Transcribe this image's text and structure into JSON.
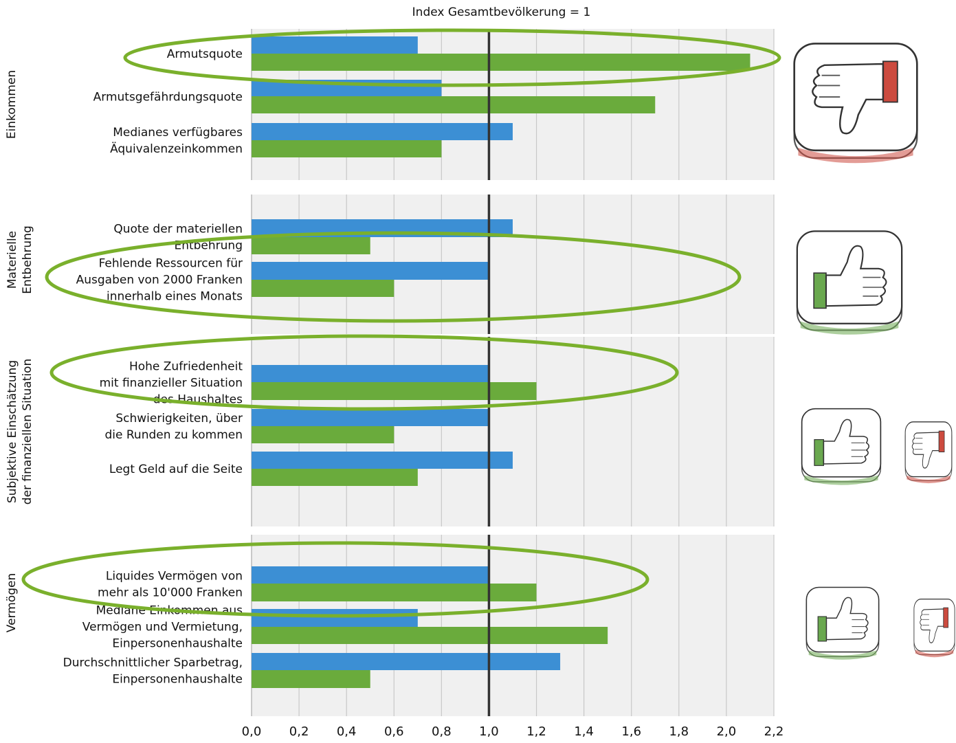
{
  "chart_data": {
    "type": "bar",
    "orientation": "horizontal",
    "title": "Index Gesamtbevölkerung = 1",
    "xlim": [
      0,
      2.2
    ],
    "xticks": [
      "0,0",
      "0,2",
      "0,4",
      "0,6",
      "0,8",
      "1,0",
      "1,2",
      "1,4",
      "1,6",
      "1,8",
      "2,0",
      "2,2"
    ],
    "reference_line": 1.0,
    "grid": true,
    "colors": {
      "series1": "#3c8fd4",
      "series2": "#6aab3c",
      "panel": "#f0f0f0",
      "grid": "#c8c8c8",
      "reference": "#333333",
      "highlight": "#7ab02c",
      "thumb_up": "#6aa84f",
      "thumb_down": "#cc4b3f"
    },
    "groups": [
      {
        "name": "Einkommen",
        "rating": [
          "thumbs-down"
        ],
        "categories": [
          {
            "label": "Armutsquote",
            "values": [
              0.7,
              2.1
            ],
            "highlighted": true
          },
          {
            "label": "Armutsgefährdungsquote",
            "values": [
              0.8,
              1.7
            ]
          },
          {
            "label": "Medianes verfügbares\nÄquivalenzeinkommen",
            "values": [
              1.1,
              0.8
            ]
          }
        ]
      },
      {
        "name": "Materielle\nEntbehrung",
        "rating": [
          "thumbs-up"
        ],
        "categories": [
          {
            "label": "Quote der materiellen\nEntbehrung",
            "values": [
              1.1,
              0.5
            ]
          },
          {
            "label": "Fehlende Ressourcen für\nAusgaben von 2000 Franken\ninnerhalb eines Monats",
            "values": [
              1.0,
              0.6
            ],
            "highlighted": true
          }
        ]
      },
      {
        "name": "Subjektive Einschätzung\nder finanziellen Situation",
        "rating": [
          "thumbs-up",
          "thumbs-down"
        ],
        "categories": [
          {
            "label": "Hohe Zufriedenheit\nmit finanzieller Situation\ndes Haushaltes",
            "values": [
              1.0,
              1.2
            ],
            "highlighted": true
          },
          {
            "label": "Schwierigkeiten, über\ndie Runden zu kommen",
            "values": [
              1.0,
              0.6
            ]
          },
          {
            "label": "Legt Geld auf die Seite",
            "values": [
              1.1,
              0.7
            ]
          }
        ]
      },
      {
        "name": "Vermögen",
        "rating": [
          "thumbs-up",
          "thumbs-down"
        ],
        "categories": [
          {
            "label": "Liquides Vermögen von\nmehr als 10'000 Franken",
            "values": [
              1.0,
              1.2
            ],
            "highlighted": true
          },
          {
            "label": "Mediane Einkommen aus\nVermögen und Vermietung,\nEinpersonenhaushalte",
            "values": [
              0.7,
              1.5
            ]
          },
          {
            "label": "Durchschnittlicher Sparbetrag,\nEinpersonenhaushalte",
            "values": [
              1.3,
              0.5
            ]
          }
        ]
      }
    ]
  }
}
